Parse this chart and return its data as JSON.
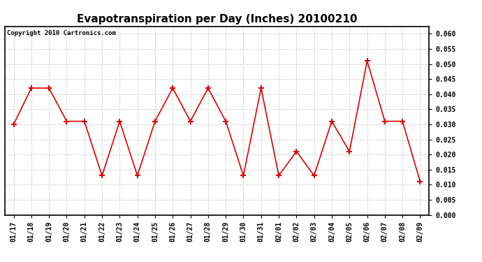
{
  "title": "Evapotranspiration per Day (Inches) 20100210",
  "copyright_text": "Copyright 2010 Cartronics.com",
  "x_labels": [
    "01/17",
    "01/18",
    "01/19",
    "01/20",
    "01/21",
    "01/22",
    "01/23",
    "01/24",
    "01/25",
    "01/26",
    "01/27",
    "01/28",
    "01/29",
    "01/30",
    "01/31",
    "02/01",
    "02/02",
    "02/03",
    "02/04",
    "02/05",
    "02/06",
    "02/07",
    "02/08",
    "02/09"
  ],
  "y_values": [
    0.03,
    0.042,
    0.042,
    0.031,
    0.031,
    0.013,
    0.031,
    0.013,
    0.031,
    0.042,
    0.031,
    0.042,
    0.031,
    0.013,
    0.042,
    0.013,
    0.021,
    0.013,
    0.031,
    0.021,
    0.051,
    0.031,
    0.031,
    0.011
  ],
  "line_color": "#dd0000",
  "marker": "+",
  "marker_size": 6,
  "marker_linewidth": 1.5,
  "ylim": [
    0.0,
    0.0625
  ],
  "ytick_min": 0.0,
  "ytick_max": 0.06,
  "ytick_step": 0.005,
  "background_color": "#ffffff",
  "grid_color": "#cccccc",
  "title_fontsize": 11,
  "tick_fontsize": 7,
  "copyright_fontsize": 6.5,
  "linewidth": 1.2
}
